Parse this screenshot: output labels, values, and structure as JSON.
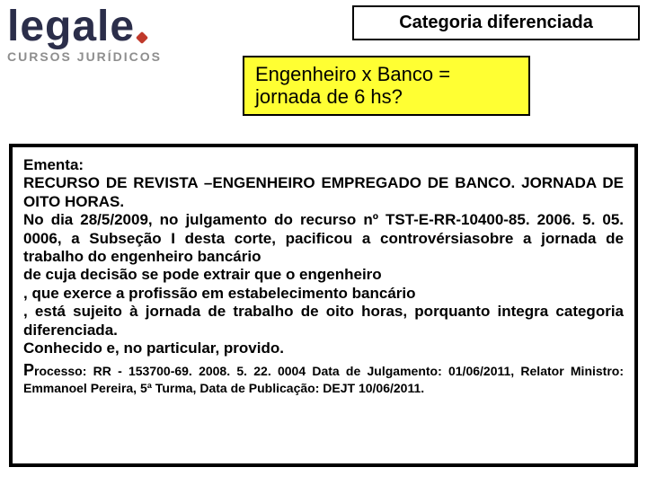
{
  "logo": {
    "main": "legale",
    "sub": "CURSOS JURÍDICOS"
  },
  "category_banner": "Categoria diferenciada",
  "question_box": "Engenheiro  x  Banco  = jornada de 6 hs?",
  "ementa": {
    "title": "Ementa:",
    "body": "RECURSO DE REVISTA –ENGENHEIRO EMPREGADO DE BANCO. JORNADA DE OITO HORAS.\nNo dia 28/5/2009, no julgamento do recurso nº TST-E-RR-10400-85. 2006. 5. 05. 0006, a Subseção I desta corte, pacificou a controvérsiasobre a jornada de trabalho do engenheiro bancário\n de cuja decisão se pode extrair que o  engenheiro\n, que exerce a profissão em estabelecimento bancário\n, está sujeito à jornada de trabalho de oito horas, porquanto integra categoria diferenciada.\nConhecido e, no particular, provido.",
    "process": "rocesso: RR - 153700-69. 2008. 5. 22. 0004 Data de Julgamento: 01/06/2011, Relator Ministro: Emmanoel Pereira, 5ª Turma, Data de Publicação: DEJT 10/06/2011."
  },
  "colors": {
    "highlight_bg": "#ffff33",
    "border": "#000000",
    "logo_main": "#2b2e4a",
    "logo_accent": "#c0392b",
    "logo_sub": "#8e8e8e"
  }
}
